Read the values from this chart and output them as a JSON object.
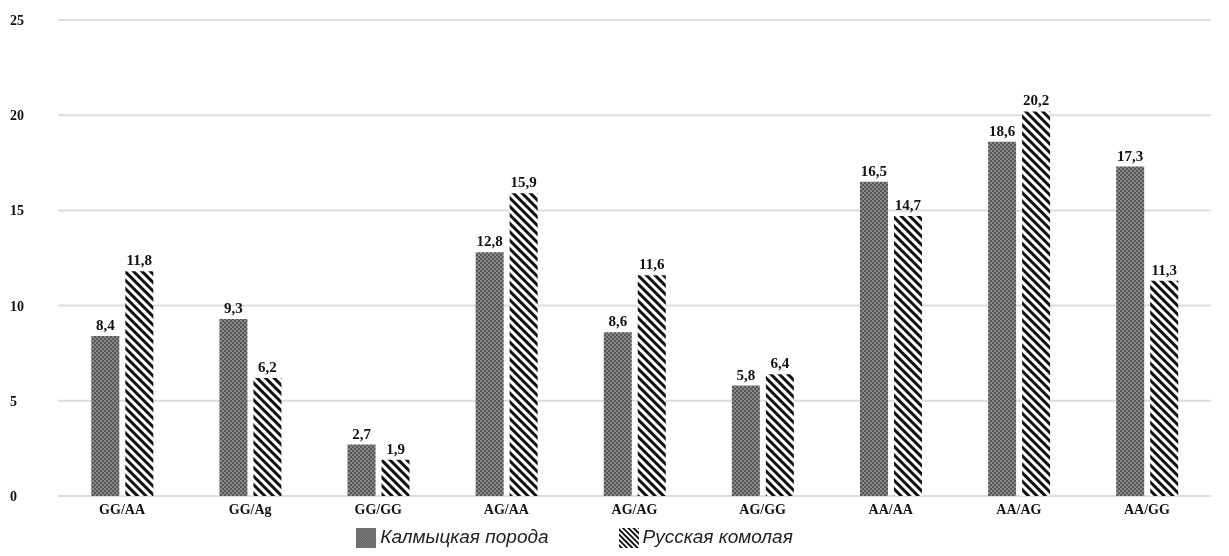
{
  "chart_data": {
    "type": "bar",
    "categories": [
      "GG/AA",
      "GG/Ag",
      "GG/GG",
      "AG/AA",
      "AG/AG",
      "AG/GG",
      "AA/AA",
      "AA/AG",
      "AA/GG"
    ],
    "series": [
      {
        "name": "Калмыцкая порода",
        "color": "#555555",
        "values": [
          8.4,
          9.3,
          2.7,
          12.8,
          8.6,
          5.8,
          16.5,
          18.6,
          17.3
        ],
        "value_labels": [
          "8,4",
          "9,3",
          "2,7",
          "12,8",
          "8,6",
          "5,8",
          "16,5",
          "18,6",
          "17,3"
        ]
      },
      {
        "name": "Русская комолая",
        "color": "#111111",
        "values": [
          11.8,
          6.2,
          1.9,
          15.9,
          11.6,
          6.4,
          14.7,
          20.2,
          11.3
        ],
        "value_labels": [
          "11,8",
          "6,2",
          "1,9",
          "15,9",
          "11,6",
          "6,4",
          "14,7",
          "20,2",
          "11,3"
        ]
      }
    ],
    "ylim": [
      0,
      25
    ],
    "yticks": [
      0,
      5,
      10,
      15,
      20,
      25
    ],
    "grid": "y",
    "legend": "bottom"
  }
}
